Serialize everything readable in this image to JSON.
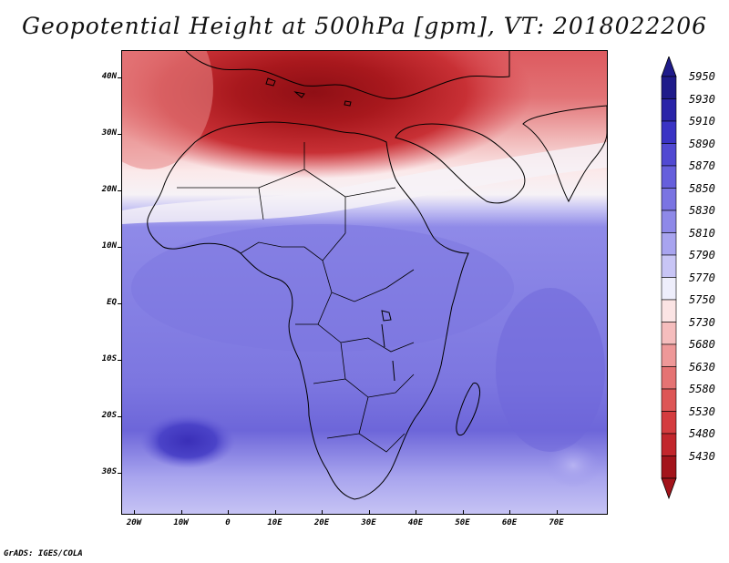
{
  "title": "Geopotential Height at 500hPa [gpm], VT: 2018022206",
  "credit": "GrADS: IGES/COLA",
  "map": {
    "lat_labels": [
      "40N",
      "30N",
      "20N",
      "10N",
      "EQ",
      "10S",
      "20S",
      "30S"
    ],
    "lon_labels": [
      "20W",
      "10W",
      "0",
      "10E",
      "20E",
      "30E",
      "40E",
      "50E",
      "60E",
      "70E"
    ],
    "field": "geopotential height 500hPa",
    "colors": {
      "high_core": "#3a2fb8",
      "mid_blue": "#6b63da",
      "light_blue": "#9a95ea",
      "transition_white": "#f4f0f4",
      "low_red": "#d8434a",
      "deep_red": "#a8141c",
      "coastline": "#000000"
    }
  },
  "colorbar": {
    "levels": [
      "5950",
      "5930",
      "5910",
      "5890",
      "5870",
      "5850",
      "5830",
      "5810",
      "5790",
      "5770",
      "5750",
      "5730",
      "5680",
      "5630",
      "5580",
      "5530",
      "5480",
      "5430"
    ],
    "colors": [
      "#1f1b8a",
      "#2a24a8",
      "#3a33c4",
      "#5149d2",
      "#665fdc",
      "#7a74e2",
      "#8e89e8",
      "#a8a4ef",
      "#c8c5f5",
      "#eeeefb",
      "#fbe4e4",
      "#f5bdbd",
      "#ee9898",
      "#e57373",
      "#dd5656",
      "#d43c3f",
      "#c2262c",
      "#a3141b"
    ]
  }
}
